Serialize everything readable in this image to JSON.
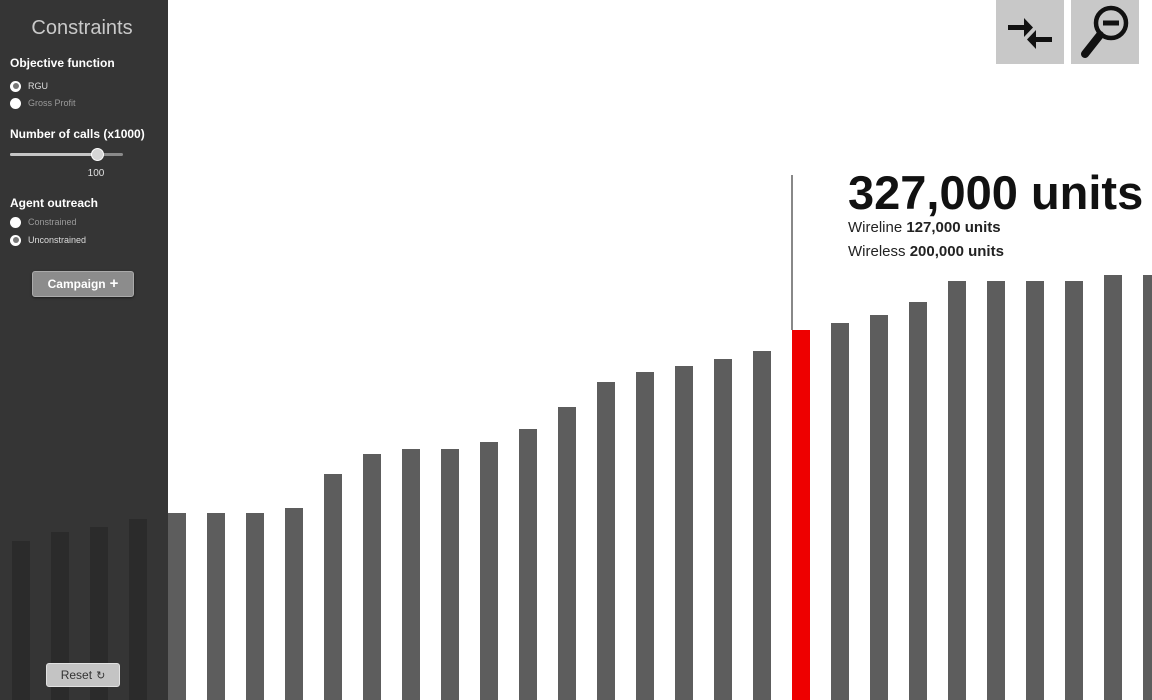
{
  "sidebar": {
    "title": "Constraints",
    "objective": {
      "heading": "Objective function",
      "options": [
        {
          "label": "RGU",
          "selected": true
        },
        {
          "label": "Gross Profit",
          "selected": false
        }
      ]
    },
    "calls": {
      "heading": "Number of calls (x1000)",
      "value": "100",
      "fraction": 0.77
    },
    "outreach": {
      "heading": "Agent outreach",
      "options": [
        {
          "label": "Constrained",
          "selected": false
        },
        {
          "label": "Unconstrained",
          "selected": true
        }
      ]
    },
    "campaign_label": "Campaign",
    "reset_label": "Reset"
  },
  "toolbar": {
    "compare_icon": "arrows-inward-icon",
    "zoom_icon": "zoom-out-icon"
  },
  "highlight": {
    "total": "327,000 units",
    "wireline_label": "Wireline",
    "wireline_value": "127,000 units",
    "wireless_label": "Wireless",
    "wireless_value": "200,000 units"
  },
  "chart_data": {
    "type": "bar",
    "values": [
      159,
      168,
      173,
      181,
      187,
      187,
      187,
      192,
      226,
      246,
      251,
      251,
      258,
      271,
      293,
      318,
      328,
      334,
      341,
      349,
      370,
      377,
      385,
      398,
      419,
      419,
      419,
      419,
      425,
      425
    ],
    "highlight_index": 20,
    "ylim": [
      0,
      700
    ],
    "colors": {
      "bar": "#5d5d5d",
      "highlight": "#ee0000"
    }
  },
  "colors": {
    "sidebar": "#2a2a2a",
    "accent": "#ee0000",
    "toolbar": "#c8c8c8"
  }
}
